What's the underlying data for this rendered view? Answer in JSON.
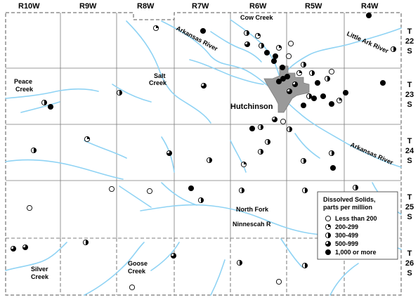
{
  "ranges": [
    "R10W",
    "R9W",
    "R8W",
    "R7W",
    "R6W",
    "R5W",
    "R4W"
  ],
  "townships": [
    {
      "t": "T",
      "n": "22",
      "s": "S"
    },
    {
      "t": "T",
      "n": "23",
      "s": "S"
    },
    {
      "t": "T",
      "n": "24",
      "s": "S"
    },
    {
      "t": "T",
      "n": "25",
      "s": "S"
    },
    {
      "t": "T",
      "n": "26",
      "s": "S"
    }
  ],
  "features": {
    "cow_creek": "Cow Creek",
    "arkansas_river_1": "Arkansas River",
    "arkansas_river_2": "Arkansas River",
    "little_ark_river": "Little Ark River",
    "salt_creek": [
      "Salt",
      "Creek"
    ],
    "peace_creek": [
      "Peace",
      "Creek"
    ],
    "hutchinson": "Hutchinson",
    "north_fork": "North Fork",
    "ninnescah": "Ninnescah R",
    "silver_creek": [
      "Silver",
      "Creek"
    ],
    "goose_creek": [
      "Goose",
      "Creek"
    ]
  },
  "legend": {
    "title_line1": "Dissolved Solids,",
    "title_line2": "parts per million",
    "items": [
      {
        "label": "Less than 200",
        "class": "c1"
      },
      {
        "label": "200-299",
        "class": "c2"
      },
      {
        "label": "300-499",
        "class": "c3"
      },
      {
        "label": "500-999",
        "class": "c4"
      },
      {
        "label": "1,000 or more",
        "class": "c5"
      }
    ]
  },
  "colors": {
    "water": "#8fd3f4",
    "city": "#9a9a9a",
    "grid": "#7a7a7a",
    "border": "#555555"
  }
}
